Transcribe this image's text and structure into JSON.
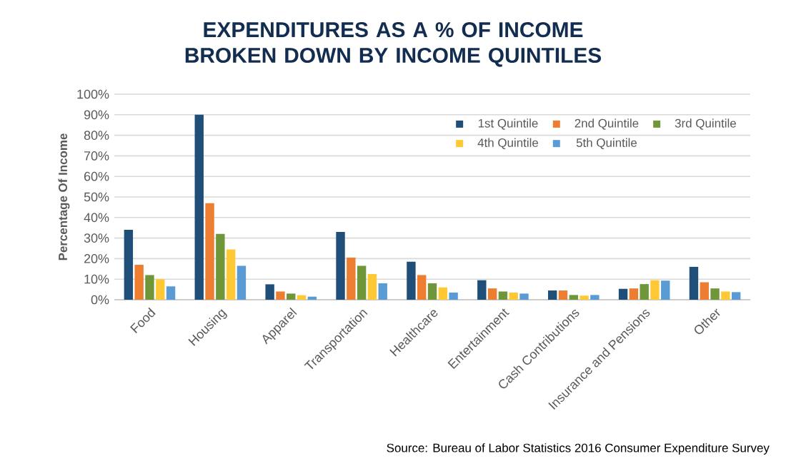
{
  "chart_data": {
    "type": "bar",
    "title": "EXPENDITURES AS A % OF INCOME BROKEN DOWN BY INCOME QUINTILES",
    "ylabel": "Percentage Of Income",
    "categories": [
      "Food",
      "Housing",
      "Apparel",
      "Transportation",
      "Healthcare",
      "Entertainment",
      "Cash Contributions",
      "Insurance and Pensions",
      "Other"
    ],
    "series": [
      {
        "name": "1st Quintile",
        "color": "#1f4e79",
        "values": [
          34,
          90,
          7.5,
          33,
          18.5,
          9.5,
          4.5,
          5.3,
          16
        ]
      },
      {
        "name": "2nd Quintile",
        "color": "#ed7d31",
        "values": [
          17,
          47,
          4,
          20.5,
          12,
          5.5,
          4.5,
          5.5,
          8.5
        ]
      },
      {
        "name": "3rd Quintile",
        "color": "#70963a",
        "values": [
          12,
          32,
          3,
          16.5,
          8,
          4,
          2.3,
          7.6,
          5.5
        ]
      },
      {
        "name": "4th Quintile",
        "color": "#ffc935",
        "values": [
          10,
          24.5,
          2.2,
          12.5,
          6,
          3.5,
          2,
          9.5,
          4
        ]
      },
      {
        "name": "5th Quintile",
        "color": "#5b9bd5",
        "values": [
          6.5,
          16.5,
          1.5,
          8,
          3.5,
          3,
          2.3,
          9.3,
          3.7
        ]
      }
    ],
    "ylim": [
      0,
      100
    ],
    "yticks": [
      {
        "value": 0,
        "label": "0%"
      },
      {
        "value": 10,
        "label": "10%"
      },
      {
        "value": 20,
        "label": "20%"
      },
      {
        "value": 30,
        "label": "30%"
      },
      {
        "value": 40,
        "label": "40%"
      },
      {
        "value": 50,
        "label": "50%"
      },
      {
        "value": 60,
        "label": "60%"
      },
      {
        "value": 70,
        "label": "70%"
      },
      {
        "value": 80,
        "label": "80%"
      },
      {
        "value": 90,
        "label": "90%"
      },
      {
        "value": 100,
        "label": "100%"
      }
    ],
    "grid": "y",
    "legend": "top right",
    "annotations": [
      "Source: Bureau of Labor Statistics 2016 Consumer Expenditure Survey"
    ]
  }
}
